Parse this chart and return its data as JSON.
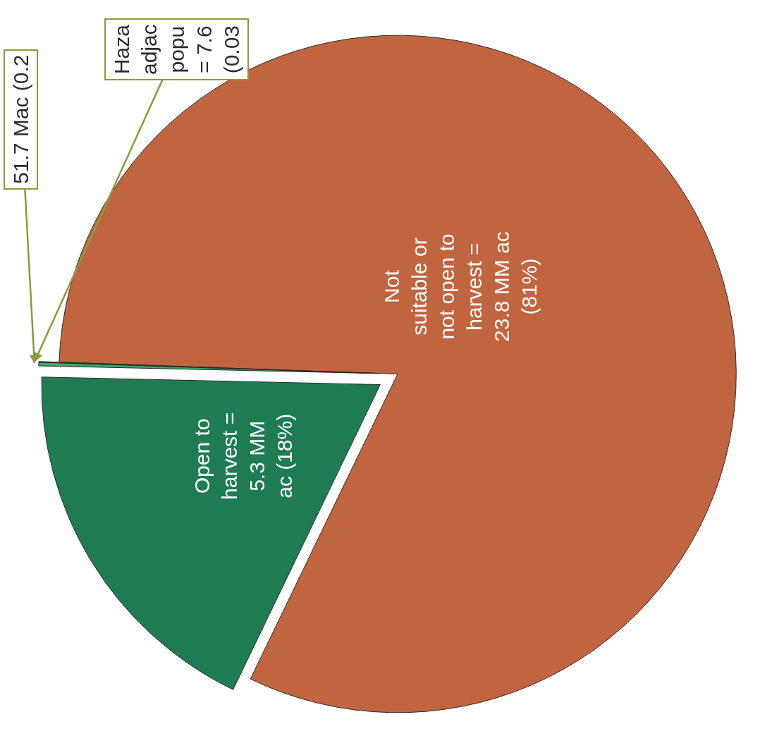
{
  "chart_data": {
    "type": "pie",
    "categories": [
      "Not\nsuitable or\nnot open to\nharvest =\n23.8 MM ac\n(81%)",
      "Open to\nharvest =\n5.3 MM\nac (18%)",
      "51.7 Mac (0.2",
      "Haza\nadjac\npopu\n= 7.6\n(0.03"
    ],
    "values": [
      81.6,
      18.2,
      0.17,
      0.03
    ],
    "colors": [
      "#c0653f",
      "#1f7c52",
      "#2fae66",
      "#2e3b38"
    ],
    "legend": false
  }
}
